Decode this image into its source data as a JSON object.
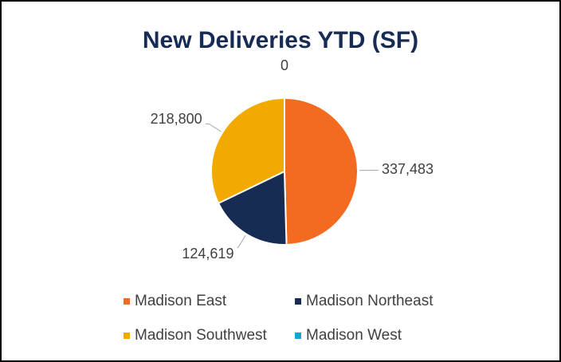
{
  "chart_data": {
    "type": "pie",
    "title": "New Deliveries YTD (SF)",
    "categories": [
      "Madison East",
      "Madison Northeast",
      "Madison Southwest",
      "Madison West"
    ],
    "values": [
      337483,
      124619,
      218800,
      0
    ],
    "value_labels": [
      "337,483",
      "124,619",
      "218,800",
      "0"
    ],
    "colors": [
      "#f26b21",
      "#172c54",
      "#f2a900",
      "#1aa3d9"
    ]
  }
}
